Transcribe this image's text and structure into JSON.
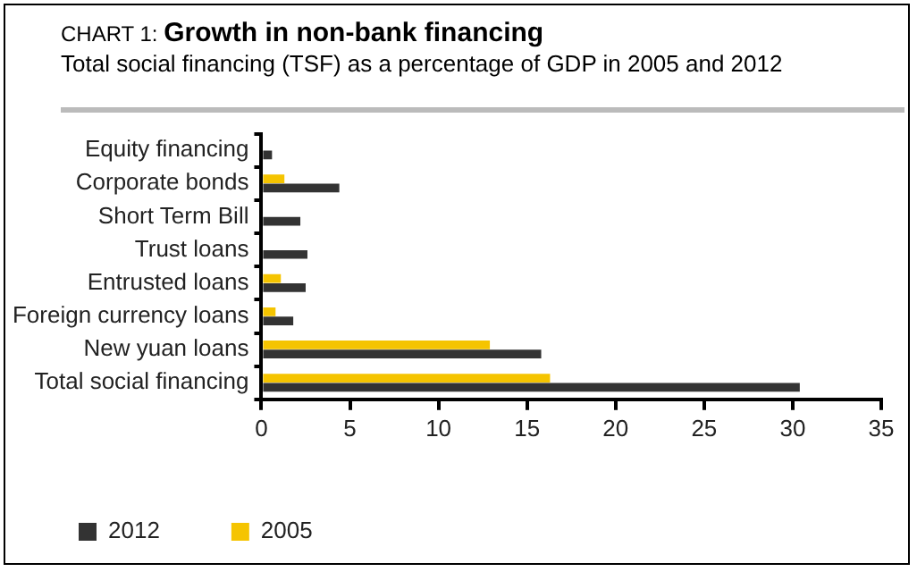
{
  "chart_data": {
    "type": "bar",
    "orientation": "horizontal",
    "title": "CHART 1: Growth in non-bank financing",
    "subtitle": "Total social financing (TSF) as a percentage of GDP in 2005 and 2012",
    "categories": [
      "Equity financing",
      "Corporate bonds",
      "Short Term Bill",
      "Trust loans",
      "Entrusted loans",
      "Foreign currency loans",
      "New yuan loans",
      "Total social financing"
    ],
    "series": [
      {
        "name": "2012",
        "color": "#333333",
        "values": [
          0.6,
          4.4,
          2.2,
          2.6,
          2.5,
          1.8,
          15.8,
          30.4
        ]
      },
      {
        "name": "2005",
        "color": "#f5c400",
        "values": [
          0,
          1.3,
          0,
          0,
          1.1,
          0.8,
          12.9,
          16.3
        ]
      }
    ],
    "xlim": [
      0,
      35
    ],
    "xticks": [
      0,
      5,
      10,
      15,
      20,
      25,
      30,
      35
    ],
    "grid": false,
    "legend": "bottom"
  }
}
